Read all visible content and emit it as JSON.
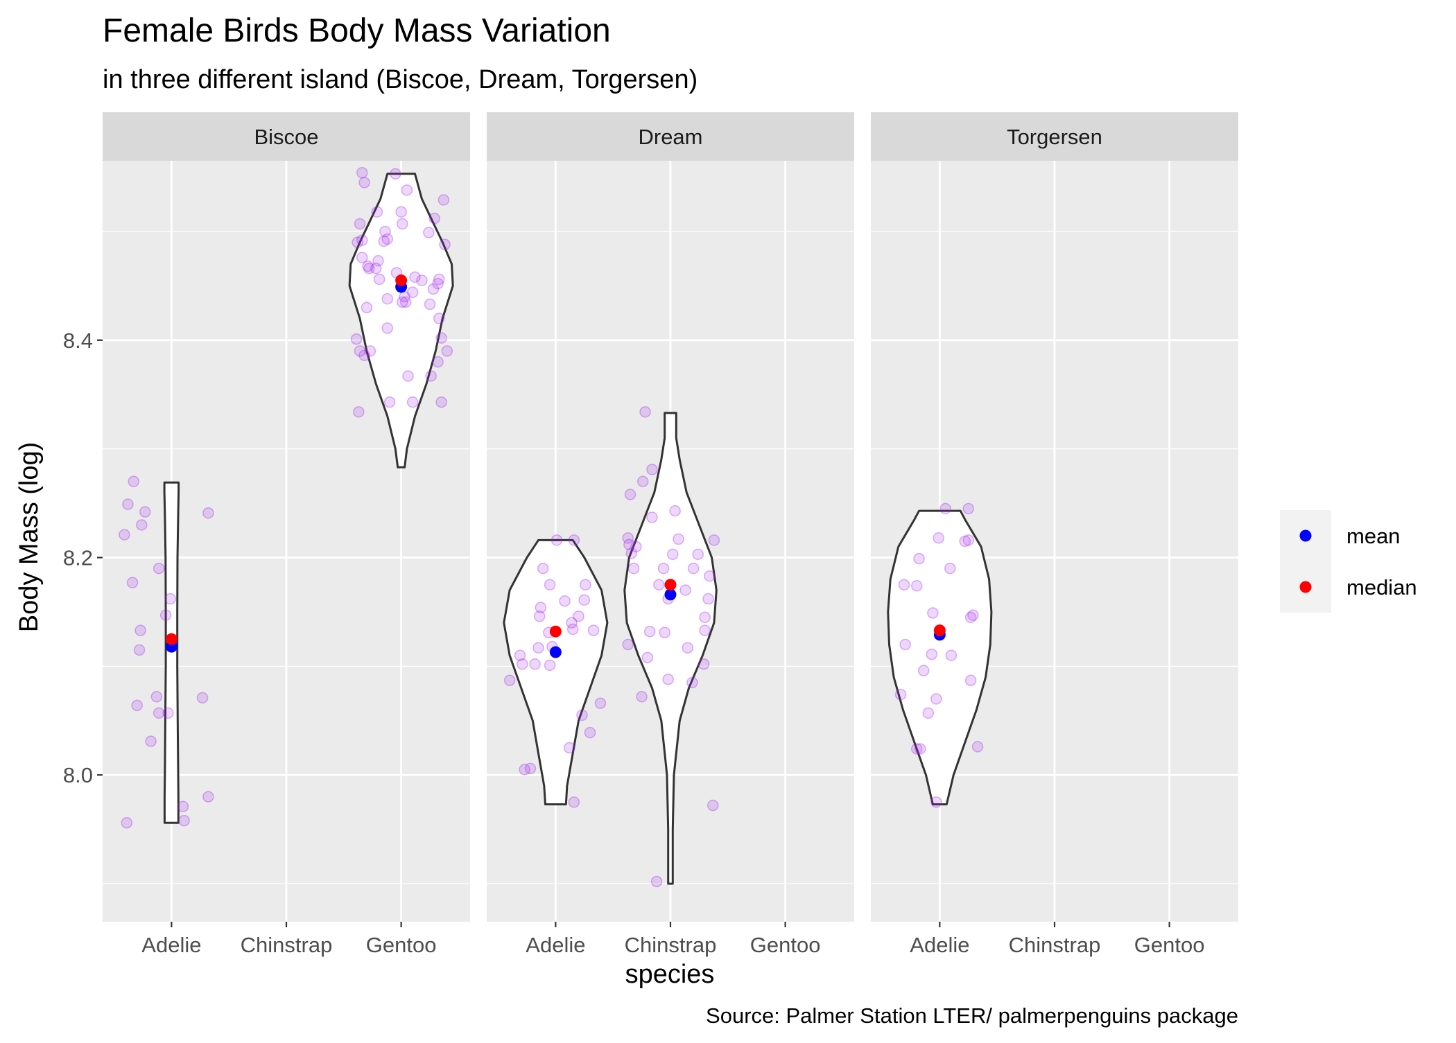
{
  "colors": {
    "panel_background": "#EBEBEB",
    "strip_background": "#D9D9D9",
    "grid_line": "#FFFFFF",
    "violin_fill": "#FFFFFF",
    "violin_outline": "#333333",
    "jitter_point": "#A020F0",
    "mean": "#0000FF",
    "median": "#FF0000"
  },
  "chart_data": {
    "type": "violin",
    "title": "Female Birds Body Mass Variation",
    "subtitle": "in three different island (Biscoe, Dream, Torgersen)",
    "caption": "Source: Palmer Station LTER/ palmerpenguins package",
    "xlabel": "species",
    "ylabel": "Body Mass (log)",
    "ylim": [
      7.865,
      8.565
    ],
    "y_ticks": [
      8.0,
      8.2,
      8.4
    ],
    "y_minor_ticks": [
      7.9,
      8.1,
      8.3,
      8.5
    ],
    "categories": [
      "Adelie",
      "Chinstrap",
      "Gentoo"
    ],
    "grid": true,
    "legend": {
      "position": "right",
      "entries": [
        {
          "label": "mean",
          "color": "#0000FF"
        },
        {
          "label": "median",
          "color": "#FF0000"
        }
      ]
    },
    "facets": [
      {
        "name": "Biscoe",
        "groups": [
          {
            "species": "Adelie",
            "mean": 8.118,
            "median": 8.125,
            "violin": {
              "y": [
                7.956,
                7.98,
                8.0,
                8.05,
                8.1,
                8.15,
                8.2,
                8.24,
                8.26,
                8.269
              ],
              "half_width": [
                0.06,
                0.06,
                0.058,
                0.054,
                0.05,
                0.05,
                0.052,
                0.058,
                0.062,
                0.062
              ]
            },
            "points": [
              {
                "x": -0.39,
                "y": 7.956
              },
              {
                "x": 0.11,
                "y": 7.958
              },
              {
                "x": 0.1,
                "y": 7.971
              },
              {
                "x": 0.32,
                "y": 7.98
              },
              {
                "x": -0.18,
                "y": 8.031
              },
              {
                "x": -0.11,
                "y": 8.057
              },
              {
                "x": -0.03,
                "y": 8.057
              },
              {
                "x": -0.3,
                "y": 8.064
              },
              {
                "x": -0.13,
                "y": 8.072
              },
              {
                "x": 0.27,
                "y": 8.071
              },
              {
                "x": -0.28,
                "y": 8.115
              },
              {
                "x": -0.27,
                "y": 8.133
              },
              {
                "x": -0.05,
                "y": 8.147
              },
              {
                "x": -0.01,
                "y": 8.162
              },
              {
                "x": -0.34,
                "y": 8.177
              },
              {
                "x": -0.11,
                "y": 8.19
              },
              {
                "x": -0.41,
                "y": 8.221
              },
              {
                "x": -0.26,
                "y": 8.23
              },
              {
                "x": -0.23,
                "y": 8.242
              },
              {
                "x": 0.32,
                "y": 8.241
              },
              {
                "x": -0.38,
                "y": 8.249
              },
              {
                "x": -0.33,
                "y": 8.27
              }
            ]
          },
          {
            "species": "Gentoo",
            "mean": 8.449,
            "median": 8.455,
            "violin": {
              "y": [
                8.283,
                8.3,
                8.33,
                8.36,
                8.39,
                8.42,
                8.45,
                8.47,
                8.49,
                8.51,
                8.53,
                8.553
              ],
              "half_width": [
                0.03,
                0.05,
                0.12,
                0.22,
                0.3,
                0.36,
                0.45,
                0.44,
                0.36,
                0.27,
                0.18,
                0.12
              ]
            },
            "points": [
              {
                "x": -0.37,
                "y": 8.334
              },
              {
                "x": -0.1,
                "y": 8.343
              },
              {
                "x": 0.1,
                "y": 8.343
              },
              {
                "x": 0.35,
                "y": 8.343
              },
              {
                "x": 0.26,
                "y": 8.367
              },
              {
                "x": 0.06,
                "y": 8.367
              },
              {
                "x": 0.32,
                "y": 8.38
              },
              {
                "x": -0.32,
                "y": 8.386
              },
              {
                "x": -0.36,
                "y": 8.39
              },
              {
                "x": -0.27,
                "y": 8.39
              },
              {
                "x": 0.4,
                "y": 8.39
              },
              {
                "x": -0.39,
                "y": 8.401
              },
              {
                "x": 0.35,
                "y": 8.402
              },
              {
                "x": -0.12,
                "y": 8.411
              },
              {
                "x": 0.33,
                "y": 8.42
              },
              {
                "x": -0.3,
                "y": 8.43
              },
              {
                "x": 0.25,
                "y": 8.433
              },
              {
                "x": 0.01,
                "y": 8.435
              },
              {
                "x": 0.04,
                "y": 8.435
              },
              {
                "x": -0.12,
                "y": 8.438
              },
              {
                "x": 0.03,
                "y": 8.44
              },
              {
                "x": 0.1,
                "y": 8.444
              },
              {
                "x": 0.28,
                "y": 8.447
              },
              {
                "x": 0.32,
                "y": 8.452
              },
              {
                "x": 0.18,
                "y": 8.455
              },
              {
                "x": 0.33,
                "y": 8.456
              },
              {
                "x": -0.19,
                "y": 8.456
              },
              {
                "x": 0.12,
                "y": 8.458
              },
              {
                "x": -0.04,
                "y": 8.462
              },
              {
                "x": -0.22,
                "y": 8.466
              },
              {
                "x": -0.28,
                "y": 8.466
              },
              {
                "x": -0.29,
                "y": 8.468
              },
              {
                "x": -0.2,
                "y": 8.473
              },
              {
                "x": -0.34,
                "y": 8.476
              },
              {
                "x": 0.38,
                "y": 8.488
              },
              {
                "x": -0.38,
                "y": 8.49
              },
              {
                "x": -0.15,
                "y": 8.491
              },
              {
                "x": -0.34,
                "y": 8.492
              },
              {
                "x": -0.12,
                "y": 8.493
              },
              {
                "x": -0.14,
                "y": 8.5
              },
              {
                "x": 0.24,
                "y": 8.499
              },
              {
                "x": -0.36,
                "y": 8.507
              },
              {
                "x": 0.01,
                "y": 8.507
              },
              {
                "x": 0.29,
                "y": 8.512
              },
              {
                "x": -0.21,
                "y": 8.518
              },
              {
                "x": 0.0,
                "y": 8.518
              },
              {
                "x": 0.37,
                "y": 8.529
              },
              {
                "x": 0.05,
                "y": 8.538
              },
              {
                "x": -0.32,
                "y": 8.545
              },
              {
                "x": -0.34,
                "y": 8.554
              },
              {
                "x": -0.05,
                "y": 8.553
              }
            ]
          }
        ]
      },
      {
        "name": "Dream",
        "groups": [
          {
            "species": "Adelie",
            "mean": 8.113,
            "median": 8.132,
            "violin": {
              "y": [
                7.973,
                7.99,
                8.02,
                8.05,
                8.08,
                8.11,
                8.14,
                8.17,
                8.2,
                8.216
              ],
              "half_width": [
                0.09,
                0.1,
                0.15,
                0.2,
                0.3,
                0.4,
                0.45,
                0.4,
                0.25,
                0.15
              ]
            },
            "points": [
              {
                "x": 0.16,
                "y": 7.975
              },
              {
                "x": -0.27,
                "y": 8.005
              },
              {
                "x": -0.22,
                "y": 8.006
              },
              {
                "x": 0.12,
                "y": 8.025
              },
              {
                "x": 0.3,
                "y": 8.039
              },
              {
                "x": 0.23,
                "y": 8.055
              },
              {
                "x": 0.39,
                "y": 8.066
              },
              {
                "x": -0.4,
                "y": 8.087
              },
              {
                "x": -0.05,
                "y": 8.101
              },
              {
                "x": -0.18,
                "y": 8.102
              },
              {
                "x": -0.29,
                "y": 8.102
              },
              {
                "x": -0.31,
                "y": 8.11
              },
              {
                "x": -0.15,
                "y": 8.117
              },
              {
                "x": -0.03,
                "y": 8.118
              },
              {
                "x": -0.06,
                "y": 8.131
              },
              {
                "x": 0.15,
                "y": 8.134
              },
              {
                "x": 0.33,
                "y": 8.133
              },
              {
                "x": 0.14,
                "y": 8.14
              },
              {
                "x": -0.14,
                "y": 8.146
              },
              {
                "x": 0.2,
                "y": 8.146
              },
              {
                "x": -0.13,
                "y": 8.154
              },
              {
                "x": 0.08,
                "y": 8.16
              },
              {
                "x": 0.25,
                "y": 8.161
              },
              {
                "x": 0.26,
                "y": 8.175
              },
              {
                "x": -0.05,
                "y": 8.175
              },
              {
                "x": -0.11,
                "y": 8.19
              },
              {
                "x": 0.01,
                "y": 8.216
              },
              {
                "x": 0.16,
                "y": 8.216
              }
            ]
          },
          {
            "species": "Chinstrap",
            "mean": 8.166,
            "median": 8.175,
            "violin": {
              "y": [
                7.9,
                7.95,
                8.0,
                8.05,
                8.08,
                8.11,
                8.14,
                8.17,
                8.2,
                8.23,
                8.26,
                8.29,
                8.31,
                8.333
              ],
              "half_width": [
                0.02,
                0.02,
                0.03,
                0.08,
                0.16,
                0.28,
                0.38,
                0.4,
                0.36,
                0.25,
                0.14,
                0.08,
                0.05,
                0.05
              ]
            },
            "points": [
              {
                "x": -0.12,
                "y": 7.902
              },
              {
                "x": 0.37,
                "y": 7.972
              },
              {
                "x": 0.19,
                "y": 8.085
              },
              {
                "x": -0.02,
                "y": 8.088
              },
              {
                "x": -0.25,
                "y": 8.072
              },
              {
                "x": 0.29,
                "y": 8.102
              },
              {
                "x": 0.15,
                "y": 8.117
              },
              {
                "x": -0.2,
                "y": 8.108
              },
              {
                "x": -0.37,
                "y": 8.12
              },
              {
                "x": -0.18,
                "y": 8.132
              },
              {
                "x": -0.05,
                "y": 8.131
              },
              {
                "x": 0.3,
                "y": 8.133
              },
              {
                "x": 0.3,
                "y": 8.145
              },
              {
                "x": 0.33,
                "y": 8.162
              },
              {
                "x": -0.02,
                "y": 8.162
              },
              {
                "x": 0.13,
                "y": 8.17
              },
              {
                "x": -0.1,
                "y": 8.175
              },
              {
                "x": 0.34,
                "y": 8.183
              },
              {
                "x": -0.32,
                "y": 8.19
              },
              {
                "x": -0.06,
                "y": 8.19
              },
              {
                "x": 0.2,
                "y": 8.19
              },
              {
                "x": -0.34,
                "y": 8.204
              },
              {
                "x": 0.02,
                "y": 8.203
              },
              {
                "x": 0.24,
                "y": 8.203
              },
              {
                "x": -0.3,
                "y": 8.21
              },
              {
                "x": -0.36,
                "y": 8.212
              },
              {
                "x": 0.38,
                "y": 8.216
              },
              {
                "x": -0.37,
                "y": 8.218
              },
              {
                "x": 0.07,
                "y": 8.217
              },
              {
                "x": -0.16,
                "y": 8.237
              },
              {
                "x": 0.04,
                "y": 8.243
              },
              {
                "x": -0.35,
                "y": 8.258
              },
              {
                "x": -0.24,
                "y": 8.27
              },
              {
                "x": -0.16,
                "y": 8.281
              },
              {
                "x": -0.22,
                "y": 8.334
              }
            ]
          }
        ]
      },
      {
        "name": "Torgersen",
        "groups": [
          {
            "species": "Adelie",
            "mean": 8.129,
            "median": 8.133,
            "violin": {
              "y": [
                7.973,
                8.0,
                8.03,
                8.06,
                8.09,
                8.12,
                8.15,
                8.18,
                8.21,
                8.235,
                8.243
              ],
              "half_width": [
                0.06,
                0.12,
                0.22,
                0.32,
                0.4,
                0.44,
                0.45,
                0.43,
                0.36,
                0.22,
                0.18
              ]
            },
            "points": [
              {
                "x": -0.03,
                "y": 7.975
              },
              {
                "x": -0.2,
                "y": 8.024
              },
              {
                "x": -0.17,
                "y": 8.024
              },
              {
                "x": 0.33,
                "y": 8.026
              },
              {
                "x": -0.1,
                "y": 8.057
              },
              {
                "x": -0.03,
                "y": 8.07
              },
              {
                "x": -0.34,
                "y": 8.074
              },
              {
                "x": 0.27,
                "y": 8.087
              },
              {
                "x": -0.14,
                "y": 8.096
              },
              {
                "x": -0.07,
                "y": 8.111
              },
              {
                "x": 0.1,
                "y": 8.11
              },
              {
                "x": -0.3,
                "y": 8.12
              },
              {
                "x": 0.29,
                "y": 8.147
              },
              {
                "x": 0.27,
                "y": 8.145
              },
              {
                "x": -0.06,
                "y": 8.149
              },
              {
                "x": -0.31,
                "y": 8.175
              },
              {
                "x": -0.2,
                "y": 8.174
              },
              {
                "x": 0.09,
                "y": 8.19
              },
              {
                "x": -0.18,
                "y": 8.199
              },
              {
                "x": 0.22,
                "y": 8.215
              },
              {
                "x": 0.25,
                "y": 8.216
              },
              {
                "x": -0.01,
                "y": 8.218
              },
              {
                "x": 0.05,
                "y": 8.245
              },
              {
                "x": 0.25,
                "y": 8.245
              }
            ]
          }
        ]
      }
    ]
  }
}
